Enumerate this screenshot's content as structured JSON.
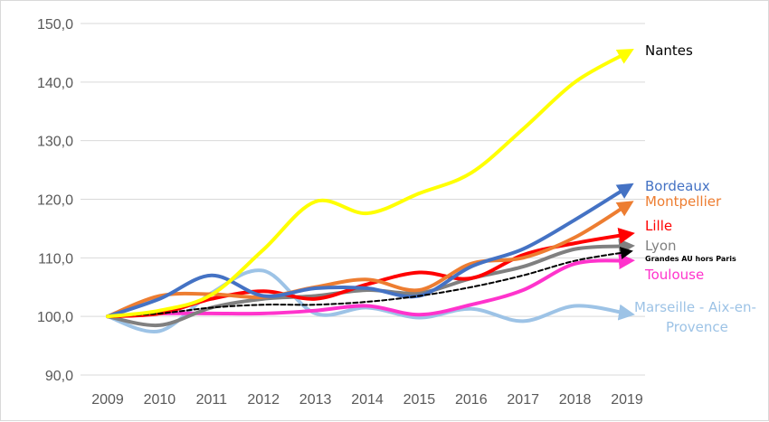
{
  "chart_data": {
    "type": "line",
    "title": "",
    "xlabel": "",
    "ylabel": "",
    "ylim": [
      90,
      150
    ],
    "yticks": [
      "90,0",
      "100,0",
      "110,0",
      "120,0",
      "130,0",
      "140,0",
      "150,0"
    ],
    "ytick_values": [
      90,
      100,
      110,
      120,
      130,
      140,
      150
    ],
    "categories": [
      "2009",
      "2010",
      "2011",
      "2012",
      "2013",
      "2014",
      "2015",
      "2016",
      "2017",
      "2018",
      "2019"
    ],
    "grid": true,
    "series": [
      {
        "name": "Marseille - Aix-en-Provence",
        "label_lines": [
          "Marseille - Aix-en-",
          "Provence"
        ],
        "color": "#9DC3E6",
        "dashed": false,
        "values": [
          100,
          97.5,
          104,
          107.8,
          100.5,
          101.5,
          99.8,
          101.3,
          99.2,
          101.8,
          100.5
        ]
      },
      {
        "name": "Toulouse",
        "color": "#FF33CC",
        "dashed": false,
        "values": [
          100,
          100.5,
          100.5,
          100.5,
          101,
          101.8,
          100.3,
          102,
          104.5,
          109,
          109.5
        ]
      },
      {
        "name": "Lyon",
        "color": "#808080",
        "dashed": false,
        "values": [
          100,
          98.5,
          101.5,
          103,
          103.5,
          104.5,
          104,
          106.5,
          108.5,
          111.5,
          112
        ]
      },
      {
        "name": "Lille",
        "color": "#FF0000",
        "dashed": false,
        "values": [
          100,
          100.5,
          103,
          104.3,
          103,
          105.5,
          107.5,
          106.5,
          110.5,
          112.5,
          114
        ]
      },
      {
        "name": "Montpellier",
        "color": "#ED7D31",
        "dashed": false,
        "values": [
          100,
          103.5,
          103.8,
          103.3,
          105,
          106.3,
          104.5,
          109,
          110,
          113.5,
          119
        ]
      },
      {
        "name": "Bordeaux",
        "color": "#4472C4",
        "dashed": false,
        "values": [
          100,
          103,
          107,
          103.5,
          104.8,
          104.8,
          103.5,
          108.5,
          111.5,
          116.5,
          122
        ]
      },
      {
        "name": "Grandes AU hors Paris",
        "color": "#000000",
        "dashed": true,
        "values": [
          100,
          100.5,
          101.5,
          102,
          102,
          102.5,
          103.5,
          105,
          107,
          109.5,
          111
        ]
      },
      {
        "name": "Nantes",
        "color": "#FFFF00",
        "dashed": false,
        "values": [
          100,
          101,
          103.7,
          111.4,
          119.6,
          117.6,
          121,
          124.5,
          132,
          140,
          145
        ]
      }
    ]
  }
}
